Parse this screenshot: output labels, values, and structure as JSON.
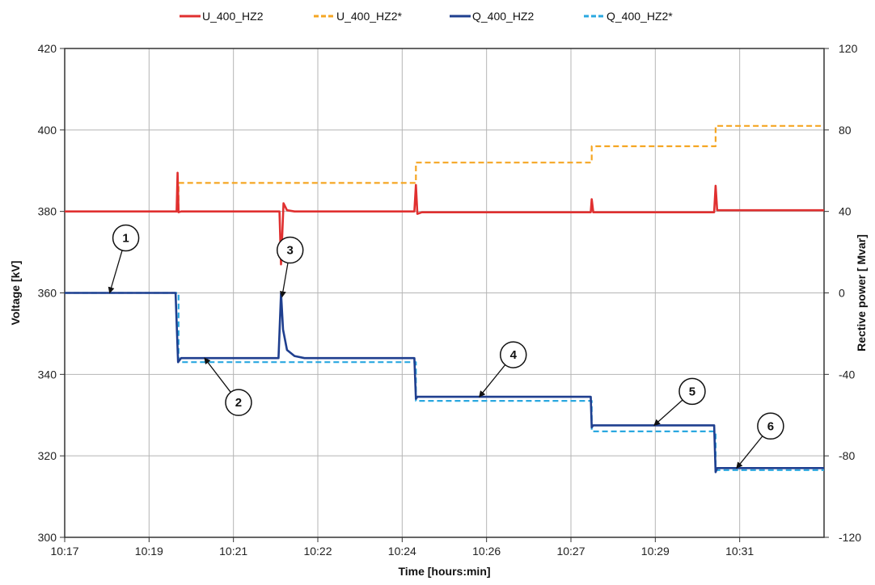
{
  "chart_data": {
    "type": "line",
    "xlabel": "Time [hours:min]",
    "ylabel_left": "Voltage [kV]",
    "ylabel_right": "Rective power [ Mvar]",
    "x_tick_labels": [
      "10:17",
      "10:19",
      "10:21",
      "10:22",
      "10:24",
      "10:26",
      "10:27",
      "10:29",
      "10:31"
    ],
    "xlim": [
      0,
      15.2
    ],
    "ylim_left": [
      300,
      420
    ],
    "ylim_right": [
      -120,
      120
    ],
    "y_ticks_left": [
      300,
      320,
      340,
      360,
      380,
      400,
      420
    ],
    "y_ticks_right": [
      -120,
      -80,
      -40,
      0,
      40,
      80,
      120
    ],
    "grid": true,
    "legend": "top",
    "series": [
      {
        "name": "U_400_HZ2",
        "axis": "left",
        "color": "#e03030",
        "style": "solid",
        "x": [
          0,
          2.24,
          2.26,
          2.28,
          2.33,
          4.3,
          4.33,
          4.38,
          4.45,
          4.6,
          7.0,
          7.03,
          7.06,
          7.15,
          10.53,
          10.55,
          10.58,
          13.0,
          13.03,
          13.06,
          15.2
        ],
        "y": [
          380,
          380,
          389.5,
          379.8,
          380,
          380,
          367,
          382,
          380.3,
          380,
          380,
          386.5,
          379.4,
          379.8,
          379.8,
          383,
          379.8,
          379.8,
          386.3,
          380.3,
          380.3
        ]
      },
      {
        "name": "U_400_HZ2*",
        "axis": "left",
        "color": "#f5a623",
        "style": "dashed",
        "x": [
          0,
          2.28,
          2.28,
          7.03,
          7.03,
          10.55,
          10.55,
          13.03,
          13.03,
          15.2
        ],
        "y": [
          380,
          380,
          387,
          387,
          392,
          392,
          396,
          396,
          401,
          401
        ]
      },
      {
        "name": "Q_400_HZ2",
        "axis": "right",
        "color": "#1f3f8f",
        "style": "solid",
        "x": [
          0,
          2.22,
          2.27,
          2.33,
          2.45,
          4.28,
          4.33,
          4.37,
          4.45,
          4.6,
          4.8,
          7.0,
          7.03,
          7.06,
          10.53,
          10.55,
          10.58,
          13.0,
          13.03,
          13.06,
          15.2
        ],
        "y": [
          0,
          0,
          -34,
          -32,
          -32,
          -32,
          0,
          -18,
          -28,
          -31,
          -32,
          -32,
          -52,
          -51,
          -51,
          -66,
          -65,
          -65,
          -88,
          -86,
          -86
        ]
      },
      {
        "name": "Q_400_HZ2*",
        "axis": "right",
        "color": "#2aa8e0",
        "style": "dashed",
        "x": [
          0,
          2.28,
          2.28,
          7.03,
          7.03,
          10.55,
          10.55,
          13.03,
          13.03,
          15.2
        ],
        "y": [
          0,
          0,
          -34,
          -34,
          -53,
          -53,
          -68,
          -68,
          -87,
          -87
        ]
      }
    ],
    "annotations": [
      {
        "label": "1",
        "axis": "right",
        "target_x": 0.9,
        "target_y": 0
      },
      {
        "label": "2",
        "axis": "right",
        "target_x": 2.8,
        "target_y": -32
      },
      {
        "label": "3",
        "axis": "right",
        "target_x": 4.35,
        "target_y": -2
      },
      {
        "label": "4",
        "axis": "right",
        "target_x": 8.3,
        "target_y": -51
      },
      {
        "label": "5",
        "axis": "right",
        "target_x": 11.8,
        "target_y": -65
      },
      {
        "label": "6",
        "axis": "right",
        "target_x": 13.45,
        "target_y": -86
      }
    ]
  }
}
